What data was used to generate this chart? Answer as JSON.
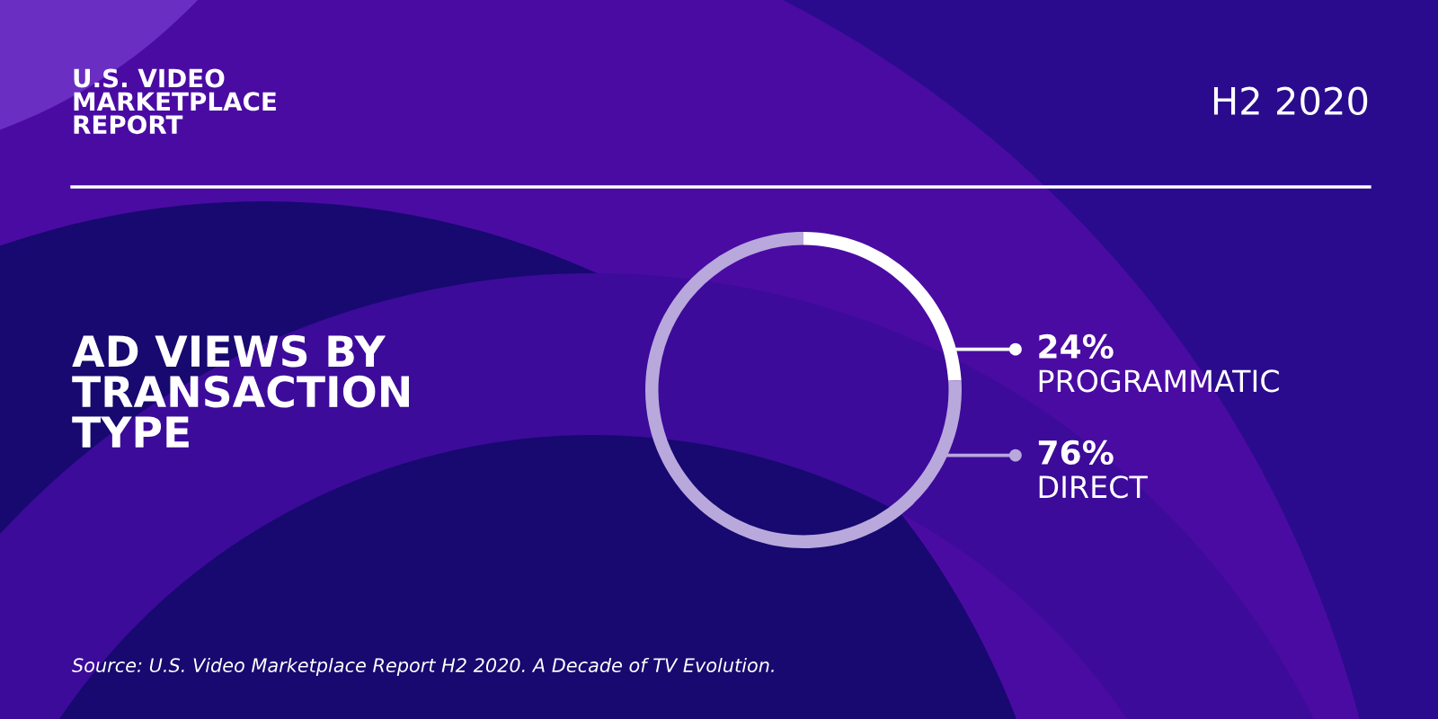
{
  "chart_data": {
    "type": "donut",
    "title": "AD VIEWS BY\nTRANSACTION\nTYPE",
    "subtitle": "U.S. VIDEO\nMARKETPLACE\nREPORT",
    "categories": [
      "PROGRAMMATIC",
      "DIRECT"
    ],
    "values": [
      24,
      76
    ],
    "colors": [
      "#ffffff",
      "#b9a8dc"
    ],
    "value_labels": [
      "24%",
      "76%"
    ],
    "legend": "right",
    "annotations": [
      "H2 2020",
      "Source: U.S. Video Marketplace Report H2 2020. A Decade of TV Evolution."
    ]
  }
}
